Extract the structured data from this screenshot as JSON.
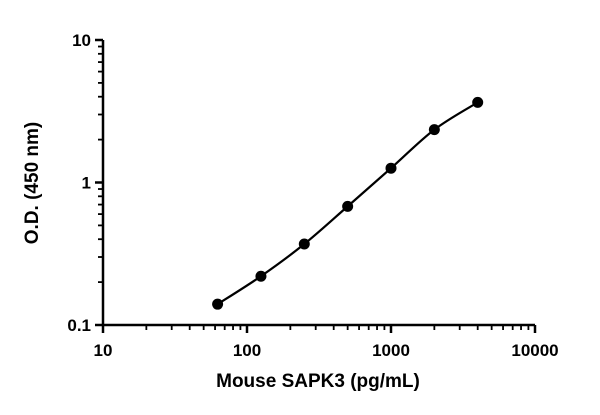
{
  "chart_data": {
    "type": "line",
    "title": "",
    "xlabel": "Mouse SAPK3 (pg/mL)",
    "ylabel": "O.D. (450 nm)",
    "x_scale": "log",
    "y_scale": "log",
    "xlim": [
      10,
      10000
    ],
    "ylim": [
      0.1,
      10
    ],
    "x_ticks": [
      {
        "value": 10,
        "label": "10"
      },
      {
        "value": 100,
        "label": "100"
      },
      {
        "value": 1000,
        "label": "1000"
      },
      {
        "value": 10000,
        "label": "10000"
      }
    ],
    "y_ticks": [
      {
        "value": 0.1,
        "label": "0.1"
      },
      {
        "value": 1,
        "label": "1"
      },
      {
        "value": 10,
        "label": "10"
      }
    ],
    "grid": false,
    "legend": "none",
    "colors": {
      "series": "#000000",
      "axis": "#000000"
    },
    "series": [
      {
        "x": [
          62.5,
          125,
          250,
          500,
          1000,
          2000,
          4000
        ],
        "y": [
          0.14,
          0.22,
          0.37,
          0.68,
          1.26,
          2.35,
          3.65
        ]
      }
    ]
  }
}
